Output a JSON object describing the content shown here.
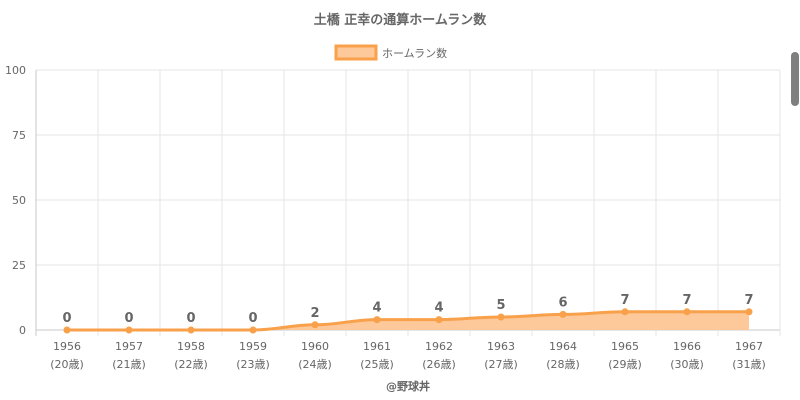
{
  "chart_data": {
    "type": "area",
    "title": "土橋 正幸の通算ホームラン数",
    "legend": {
      "label": "ホームラン数",
      "position": "top-center"
    },
    "categories": [
      "1956",
      "1957",
      "1958",
      "1959",
      "1960",
      "1961",
      "1962",
      "1963",
      "1964",
      "1965",
      "1966",
      "1967"
    ],
    "sub_categories": [
      "(20歳)",
      "(21歳)",
      "(22歳)",
      "(23歳)",
      "(24歳)",
      "(25歳)",
      "(26歳)",
      "(27歳)",
      "(28歳)",
      "(29歳)",
      "(30歳)",
      "(31歳)"
    ],
    "series": [
      {
        "name": "ホームラン数",
        "values": [
          0,
          0,
          0,
          0,
          2,
          4,
          4,
          5,
          6,
          7,
          7,
          7
        ]
      }
    ],
    "ylim": [
      0,
      100
    ],
    "yticks": [
      0,
      25,
      50,
      75,
      100
    ],
    "grid": true,
    "colors": {
      "line": "#f9a04a",
      "fill": "#fdc99a"
    },
    "credit": "@野球丼"
  }
}
